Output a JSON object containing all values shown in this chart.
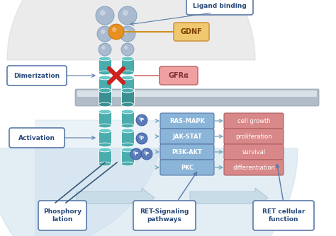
{
  "bg_color": "#ffffff",
  "teal": "#4aacac",
  "teal_dark": "#3a9090",
  "blue_box": "#8ab4d8",
  "blue_box_border": "#5a7aaa",
  "blue_box_text": "#2a4a7a",
  "red_box": "#d88888",
  "red_box_border": "#b06060",
  "red_box_text": "#ffffff",
  "orange_ball": "#e89020",
  "light_blue_ball": "#aabbd0",
  "light_blue_ball_edge": "#7a9ab8",
  "p_circle": "#5a7ab8",
  "p_circle_text": "#ffffff",
  "arrow_blue": "#7aaabf",
  "callout_bg": "#ffffff",
  "callout_border": "#5a7aaa",
  "callout_text": "#2a4a7a",
  "gdnf_bg": "#f0c870",
  "gdnf_border": "#d09840",
  "gfra_bg": "#f0a0a0",
  "gfra_border": "#c07070",
  "swoosh_color": "#c0d8e8",
  "membrane_color": "#b0bcc8",
  "membrane_hi": "#d8e0e8",
  "cross_color": "#cc2222",
  "bottom_arrow_color": "#c8dce8",
  "bottom_arrow_edge": "#a0bcd0",
  "label_boxes": {
    "ligand_binding": "Ligand binding",
    "gdnf": "GDNF",
    "gfra": "GFRα",
    "dimerization": "Dimerization",
    "activation": "Activation",
    "phosphorylation": "Phosphory\nlation",
    "ret_signaling": "RET-Signaling\npathways",
    "ret_function": "RET cellular\nfunction"
  },
  "pathway_labels": [
    "RAS-MAPK",
    "JAK-STAT",
    "PI3K-AKT",
    "PKC"
  ],
  "function_labels": [
    "cell growth",
    "proliferation",
    "survival",
    "differentiation"
  ]
}
